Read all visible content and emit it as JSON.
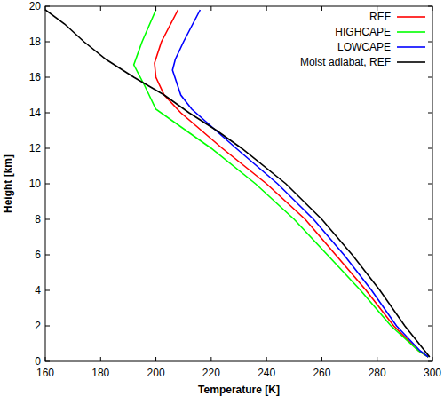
{
  "chart_data": {
    "type": "line",
    "x_label": "Temperature [K]",
    "y_label": "Height [km]",
    "xlim": [
      160,
      300
    ],
    "ylim": [
      0,
      20
    ],
    "xticks": [
      160,
      180,
      200,
      220,
      240,
      260,
      280,
      300
    ],
    "yticks": [
      0,
      2,
      4,
      6,
      8,
      10,
      12,
      14,
      16,
      18,
      20
    ],
    "legend": "upper right",
    "series": [
      {
        "name": "REF",
        "color": "#ff0000",
        "x": [
          298.5,
          295,
          286,
          276,
          265,
          254,
          240,
          224,
          209,
          203,
          200,
          199.5,
          202,
          208
        ],
        "values": [
          0.25,
          0.6,
          2,
          4,
          6,
          8,
          10,
          12,
          14,
          15,
          16,
          16.8,
          18,
          19.8
        ]
      },
      {
        "name": "HIGHCAPE",
        "color": "#00ff00",
        "x": [
          298.5,
          295,
          285,
          274,
          262,
          250,
          236,
          220,
          200,
          196,
          192,
          195,
          200
        ],
        "values": [
          0.25,
          0.6,
          2,
          4,
          6,
          8,
          10,
          12,
          14.2,
          15.5,
          16.7,
          18,
          19.8
        ]
      },
      {
        "name": "LOWCAPE",
        "color": "#0000ff",
        "x": [
          298.5,
          295.5,
          287,
          278,
          268,
          257,
          244,
          229,
          213,
          209,
          206,
          207,
          210,
          216
        ],
        "values": [
          0.25,
          0.6,
          2,
          4,
          6,
          8,
          10,
          12,
          14.2,
          15,
          16.4,
          17,
          18,
          19.8
        ]
      },
      {
        "name": "Moist adiabat, REF",
        "color": "#000000",
        "x": [
          299,
          290,
          281,
          271,
          260,
          247,
          231,
          222,
          212,
          203,
          192,
          182,
          174,
          167,
          160
        ],
        "values": [
          0.25,
          2,
          4,
          6,
          8,
          10,
          12,
          13,
          14,
          15,
          16,
          17,
          18,
          19,
          19.8
        ]
      }
    ]
  }
}
